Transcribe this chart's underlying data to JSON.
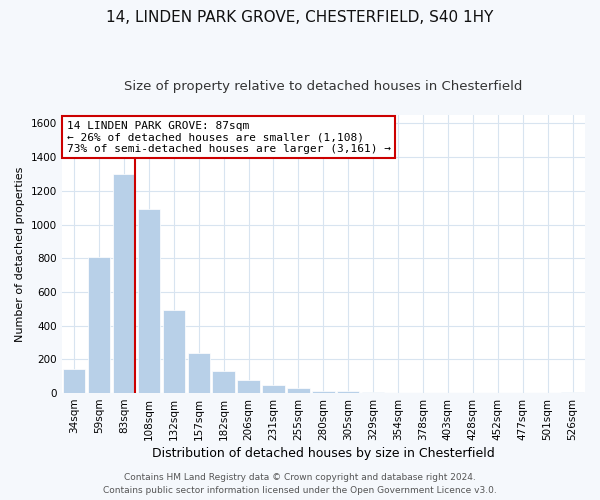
{
  "title": "14, LINDEN PARK GROVE, CHESTERFIELD, S40 1HY",
  "subtitle": "Size of property relative to detached houses in Chesterfield",
  "xlabel": "Distribution of detached houses by size in Chesterfield",
  "ylabel": "Number of detached properties",
  "bar_labels": [
    "34sqm",
    "59sqm",
    "83sqm",
    "108sqm",
    "132sqm",
    "157sqm",
    "182sqm",
    "206sqm",
    "231sqm",
    "255sqm",
    "280sqm",
    "305sqm",
    "329sqm",
    "354sqm",
    "378sqm",
    "403sqm",
    "428sqm",
    "452sqm",
    "477sqm",
    "501sqm",
    "526sqm"
  ],
  "bar_values": [
    140,
    810,
    1300,
    1095,
    490,
    235,
    130,
    75,
    50,
    28,
    15,
    10,
    5,
    2,
    1,
    0,
    0,
    0,
    0,
    0,
    8
  ],
  "bar_color": "#b8d0e8",
  "bar_edge_color": "#ffffff",
  "annotation_title": "14 LINDEN PARK GROVE: 87sqm",
  "annotation_line1": "← 26% of detached houses are smaller (1,108)",
  "annotation_line2": "73% of semi-detached houses are larger (3,161) →",
  "annotation_box_facecolor": "#ffffff",
  "annotation_box_edge": "#cc0000",
  "vline_color": "#cc0000",
  "footer1": "Contains HM Land Registry data © Crown copyright and database right 2024.",
  "footer2": "Contains public sector information licensed under the Open Government Licence v3.0.",
  "plot_bg_color": "#ffffff",
  "fig_bg_color": "#f5f8fc",
  "ylim": [
    0,
    1650
  ],
  "yticks": [
    0,
    200,
    400,
    600,
    800,
    1000,
    1200,
    1400,
    1600
  ],
  "title_fontsize": 11,
  "subtitle_fontsize": 9.5,
  "xlabel_fontsize": 9,
  "ylabel_fontsize": 8,
  "tick_fontsize": 7.5,
  "annotation_fontsize": 8,
  "footer_fontsize": 6.5
}
